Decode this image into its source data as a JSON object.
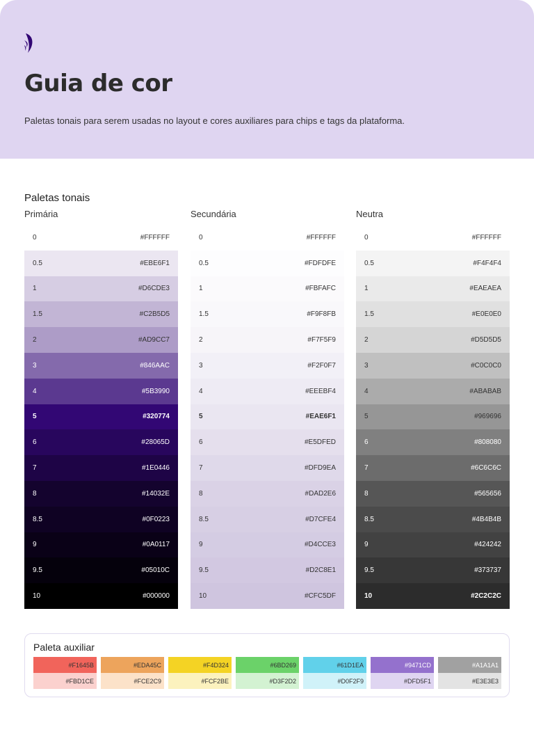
{
  "header": {
    "title": "Guia de cor",
    "subtitle": "Paletas tonais para serem usadas no layout e cores auxiliares para chips e tags da plataforma.",
    "logo": "brand-feather-logo",
    "logo_color": "#320774"
  },
  "tonal": {
    "title": "Paletas tonais",
    "columns": [
      {
        "name": "Primária",
        "bold": "5",
        "light_from": 6,
        "rows": [
          [
            "0",
            "#FFFFFF"
          ],
          [
            "0.5",
            "#EBE6F1"
          ],
          [
            "1",
            "#D6CDE3"
          ],
          [
            "1.5",
            "#C2B5D5"
          ],
          [
            "2",
            "#AD9CC7"
          ],
          [
            "3",
            "#846AAC"
          ],
          [
            "4",
            "#5B3990"
          ],
          [
            "5",
            "#320774"
          ],
          [
            "6",
            "#28065D"
          ],
          [
            "7",
            "#1E0446"
          ],
          [
            "8",
            "#14032E"
          ],
          [
            "8.5",
            "#0F0223"
          ],
          [
            "9",
            "#0A0117"
          ],
          [
            "9.5",
            "#05010C"
          ],
          [
            "10",
            "#000000"
          ]
        ]
      },
      {
        "name": "Secundária",
        "bold": "5",
        "light_from": 99,
        "rows": [
          [
            "0",
            "#FFFFFF"
          ],
          [
            "0.5",
            "#FDFDFE"
          ],
          [
            "1",
            "#FBFAFC"
          ],
          [
            "1.5",
            "#F9F8FB"
          ],
          [
            "2",
            "#F7F5F9"
          ],
          [
            "3",
            "#F2F0F7"
          ],
          [
            "4",
            "#EEEBF4"
          ],
          [
            "5",
            "#EAE6F1"
          ],
          [
            "6",
            "#E5DFED"
          ],
          [
            "7",
            "#DFD9EA"
          ],
          [
            "8",
            "#DAD2E6"
          ],
          [
            "8.5",
            "#D7CFE4"
          ],
          [
            "9",
            "#D4CCE3"
          ],
          [
            "9.5",
            "#D2C8E1"
          ],
          [
            "10",
            "#CFC5DF"
          ]
        ]
      },
      {
        "name": "Neutra",
        "bold": "10",
        "light_from": 8,
        "rows": [
          [
            "0",
            "#FFFFFF"
          ],
          [
            "0.5",
            "#F4F4F4"
          ],
          [
            "1",
            "#EAEAEA"
          ],
          [
            "1.5",
            "#E0E0E0"
          ],
          [
            "2",
            "#D5D5D5"
          ],
          [
            "3",
            "#C0C0C0"
          ],
          [
            "4",
            "#ABABAB"
          ],
          [
            "5",
            "#969696"
          ],
          [
            "6",
            "#808080"
          ],
          [
            "7",
            "#6C6C6C"
          ],
          [
            "8",
            "#565656"
          ],
          [
            "8.5",
            "#4B4B4B"
          ],
          [
            "9",
            "#424242"
          ],
          [
            "9.5",
            "#373737"
          ],
          [
            "10",
            "#2C2C2C"
          ]
        ]
      }
    ]
  },
  "auxiliary": {
    "title": "Paleta auxiliar",
    "chips": [
      [
        "#F1645B",
        "#FBD1CE"
      ],
      [
        "#EDA45C",
        "#FCE2C9"
      ],
      [
        "#F4D324",
        "#FCF2BE"
      ],
      [
        "#6BD269",
        "#D3F2D2"
      ],
      [
        "#61D1EA",
        "#D0F2F9"
      ],
      [
        "#9471CD",
        "#DFD5F1"
      ],
      [
        "#A1A1A1",
        "#E3E3E3"
      ]
    ]
  }
}
